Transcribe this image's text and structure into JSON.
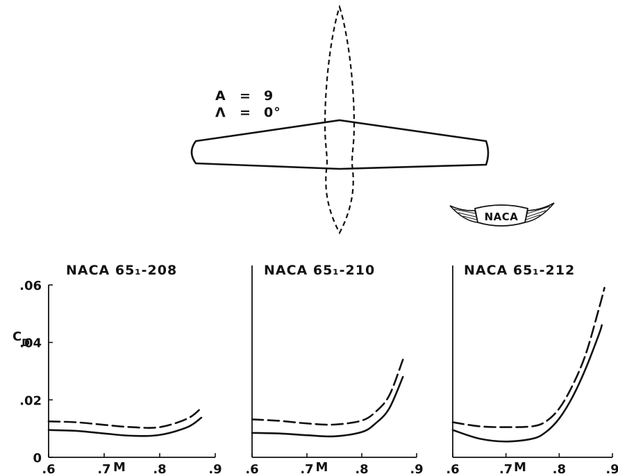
{
  "figure": {
    "parameters": [
      {
        "symbol": "A",
        "eq": "=",
        "value": "9"
      },
      {
        "symbol": "Λ",
        "eq": "=",
        "value": "0°"
      }
    ],
    "logo": {
      "text": "NACA"
    }
  },
  "chart_data": [
    {
      "type": "line",
      "title": "NACA 65₁-208",
      "xlabel": "M",
      "ylabel": "C_D",
      "xlim": [
        0.6,
        0.9
      ],
      "ylim": [
        0,
        0.06
      ],
      "xticks": [
        ".6",
        ".7",
        ".8",
        ".9"
      ],
      "yticks": [
        "0",
        ".02",
        ".04",
        ".06"
      ],
      "grid": false,
      "series": [
        {
          "style": "dashed",
          "x": [
            0.6,
            0.65,
            0.7,
            0.75,
            0.8,
            0.85,
            0.875
          ],
          "y": [
            0.0125,
            0.0122,
            0.0113,
            0.0105,
            0.0105,
            0.0135,
            0.0172
          ]
        },
        {
          "style": "solid",
          "x": [
            0.6,
            0.65,
            0.7,
            0.75,
            0.8,
            0.85,
            0.875
          ],
          "y": [
            0.0095,
            0.0092,
            0.0083,
            0.0075,
            0.0078,
            0.0105,
            0.0138
          ]
        }
      ]
    },
    {
      "type": "line",
      "title": "NACA 65₁-210",
      "xlabel": "M",
      "ylabel": "",
      "xlim": [
        0.6,
        0.9
      ],
      "ylim": [
        0,
        0.06
      ],
      "xticks": [
        ".6",
        ".7",
        ".8",
        ".9"
      ],
      "yticks": [],
      "grid": false,
      "series": [
        {
          "style": "dashed",
          "x": [
            0.6,
            0.65,
            0.7,
            0.75,
            0.8,
            0.825,
            0.85,
            0.875
          ],
          "y": [
            0.0132,
            0.0127,
            0.0118,
            0.0114,
            0.0128,
            0.0158,
            0.0215,
            0.034
          ]
        },
        {
          "style": "solid",
          "x": [
            0.6,
            0.65,
            0.7,
            0.75,
            0.8,
            0.825,
            0.85,
            0.875
          ],
          "y": [
            0.0085,
            0.0083,
            0.0077,
            0.0073,
            0.0088,
            0.0118,
            0.017,
            0.028
          ]
        }
      ]
    },
    {
      "type": "line",
      "title": "NACA 65₁-212",
      "xlabel": "M",
      "ylabel": "",
      "xlim": [
        0.6,
        0.9
      ],
      "ylim": [
        0,
        0.06
      ],
      "xticks": [
        ".6",
        ".7",
        ".8",
        ".9"
      ],
      "yticks": [],
      "grid": false,
      "series": [
        {
          "style": "dashed",
          "x": [
            0.6,
            0.65,
            0.7,
            0.75,
            0.775,
            0.8,
            0.825,
            0.85,
            0.875,
            0.885
          ],
          "y": [
            0.0122,
            0.0108,
            0.0105,
            0.0108,
            0.0125,
            0.017,
            0.025,
            0.036,
            0.052,
            0.059
          ]
        },
        {
          "style": "solid",
          "x": [
            0.6,
            0.65,
            0.7,
            0.75,
            0.775,
            0.8,
            0.825,
            0.85,
            0.875,
            0.88
          ],
          "y": [
            0.0095,
            0.0065,
            0.0055,
            0.0065,
            0.0088,
            0.0135,
            0.021,
            0.031,
            0.043,
            0.046
          ]
        }
      ]
    }
  ]
}
